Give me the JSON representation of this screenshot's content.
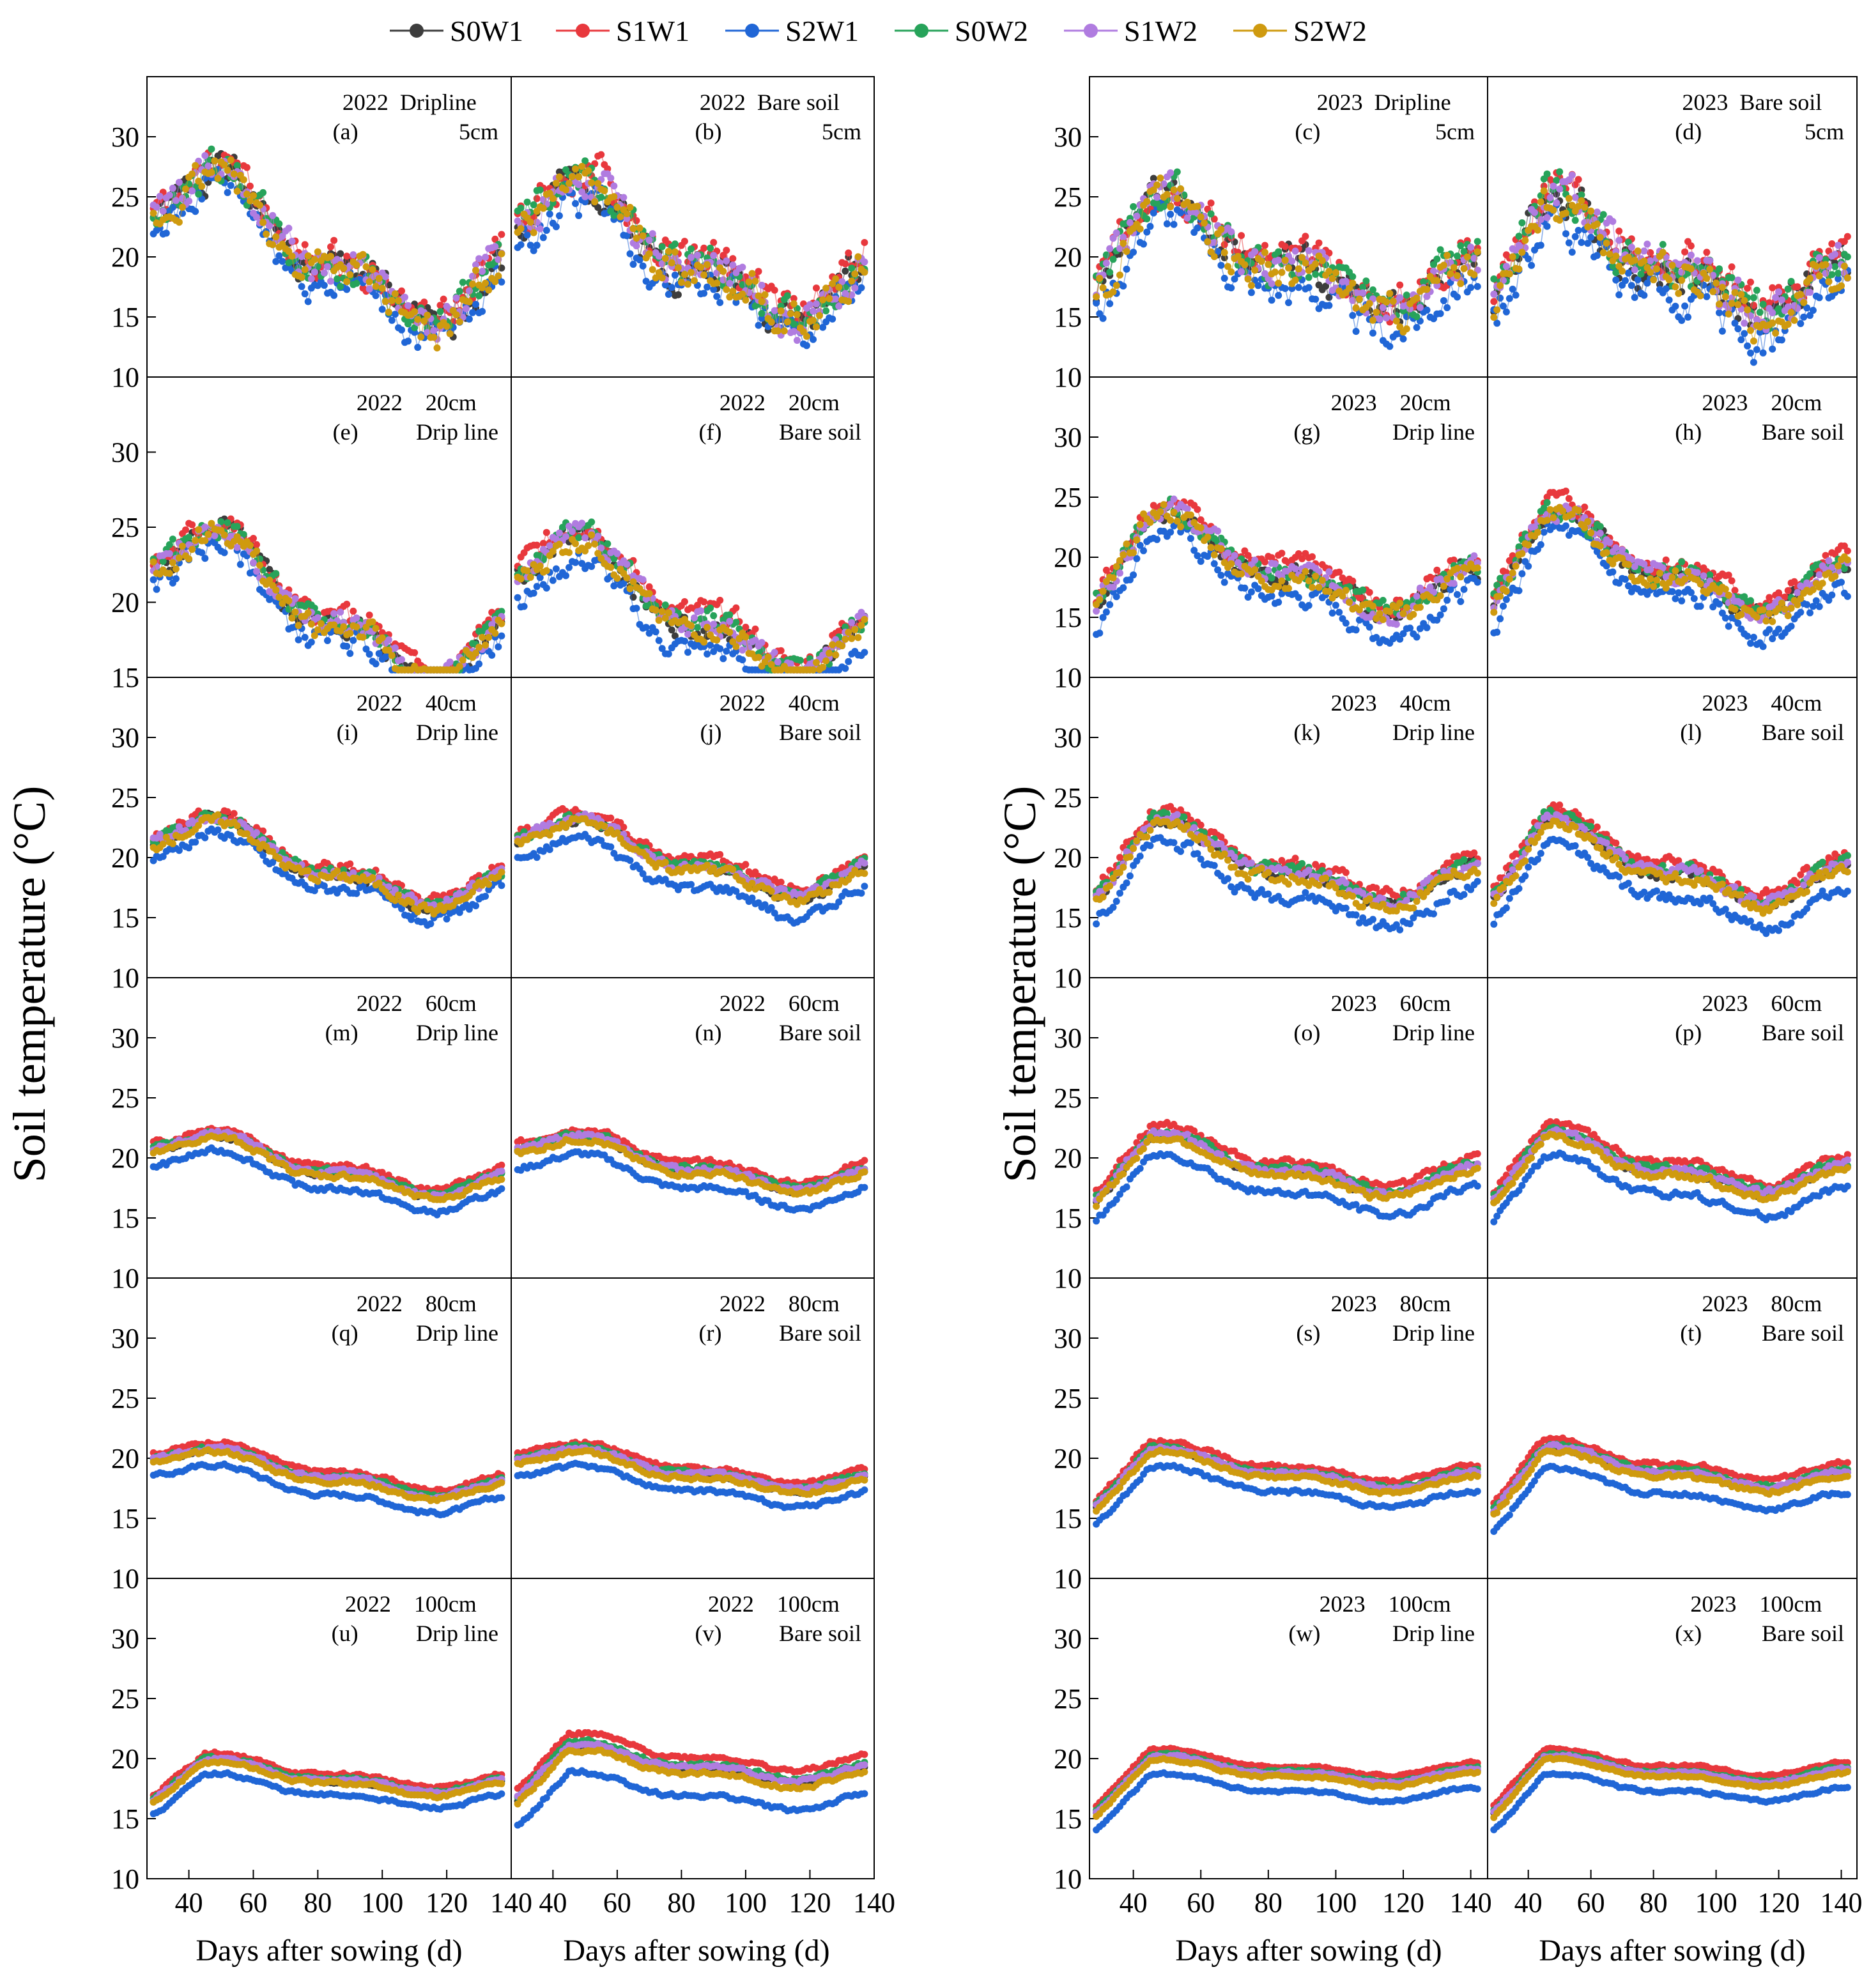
{
  "figure": {
    "ylabel": "Soil temperature (°C)",
    "xlabel": "Days after sowing (d)"
  },
  "legend": [
    {
      "name": "S0W1",
      "color": "#3d3d3d"
    },
    {
      "name": "S1W1",
      "color": "#e8383d"
    },
    {
      "name": "S2W1",
      "color": "#2066d6"
    },
    {
      "name": "S0W2",
      "color": "#27a35a"
    },
    {
      "name": "S1W2",
      "color": "#b07ce0"
    },
    {
      "name": "S2W2",
      "color": "#cf9a0f"
    }
  ],
  "chart_data": [
    {
      "type": "scatter",
      "panel": "a",
      "year": "2022",
      "location": "Dripline",
      "depth": "5cm",
      "header_top": "2022  Dripline",
      "header_left": "(a)",
      "header_right": "5cm",
      "xlim": [
        27,
        140
      ],
      "ylim": [
        10,
        35
      ],
      "yticks": [
        10,
        15,
        20,
        25,
        30
      ],
      "base": 23,
      "amp": 3.5,
      "trend": -6,
      "spread": 1.8,
      "noise": 2.5,
      "ramp": 0,
      "seed": 1
    },
    {
      "type": "scatter",
      "panel": "b",
      "year": "2022",
      "location": "Bare soil",
      "depth": "5cm",
      "header_top": "2022  Bare soil",
      "header_left": "(b)",
      "header_right": "5cm",
      "xlim": [
        27,
        140
      ],
      "ylim": [
        10,
        35
      ],
      "yticks": [
        10,
        15,
        20,
        25,
        30
      ],
      "base": 22.5,
      "amp": 3,
      "trend": -5.5,
      "spread": 2.2,
      "noise": 2.7,
      "ramp": 0,
      "seed": 2
    },
    {
      "type": "scatter",
      "panel": "c",
      "year": "2023",
      "location": "Dripline",
      "depth": "5cm",
      "header_top": "2023  Dripline",
      "header_left": "(c)",
      "header_right": "5cm",
      "xlim": [
        27,
        145
      ],
      "ylim": [
        10,
        35
      ],
      "yticks": [
        10,
        15,
        20,
        25,
        30
      ],
      "base": 22,
      "amp": 2.5,
      "trend": -5,
      "spread": 2.6,
      "noise": 2.6,
      "ramp": 6,
      "seed": 3
    },
    {
      "type": "scatter",
      "panel": "d",
      "year": "2023",
      "location": "Bare soil",
      "depth": "5cm",
      "header_top": "2023  Bare soil",
      "header_left": "(d)",
      "header_right": "5cm",
      "xlim": [
        27,
        145
      ],
      "ylim": [
        10,
        35
      ],
      "yticks": [
        10,
        15,
        20,
        25,
        30
      ],
      "base": 21.5,
      "amp": 2.5,
      "trend": -5,
      "spread": 3.2,
      "noise": 2.8,
      "ramp": 6,
      "seed": 4
    },
    {
      "type": "scatter",
      "panel": "e",
      "year": "2022",
      "location": "Drip line",
      "depth": "20cm",
      "header_top": "2022    20cm",
      "header_left": "(e)",
      "header_right": "Drip line",
      "xlim": [
        27,
        140
      ],
      "ylim": [
        15,
        35
      ],
      "yticks": [
        15,
        20,
        25,
        30
      ],
      "base": 22,
      "amp": 2.5,
      "trend": -5.5,
      "spread": 1.6,
      "noise": 1.4,
      "ramp": 0,
      "seed": 5
    },
    {
      "type": "scatter",
      "panel": "f",
      "year": "2022",
      "location": "Bare soil",
      "depth": "20cm",
      "header_top": "2022    20cm",
      "header_left": "(f)",
      "header_right": "Bare soil",
      "xlim": [
        27,
        140
      ],
      "ylim": [
        15,
        35
      ],
      "yticks": [
        15,
        20,
        25,
        30
      ],
      "base": 21.5,
      "amp": 2.3,
      "trend": -5,
      "spread": 2.6,
      "noise": 1.3,
      "ramp": 0,
      "seed": 6
    },
    {
      "type": "scatter",
      "panel": "g",
      "year": "2023",
      "location": "Drip line",
      "depth": "20cm",
      "header_top": "2023    20cm",
      "header_left": "(g)",
      "header_right": "Drip line",
      "xlim": [
        27,
        145
      ],
      "ylim": [
        10,
        35
      ],
      "yticks": [
        10,
        15,
        20,
        25,
        30
      ],
      "base": 21,
      "amp": 2.2,
      "trend": -4.5,
      "spread": 2.8,
      "noise": 1.5,
      "ramp": 6,
      "seed": 7
    },
    {
      "type": "scatter",
      "panel": "h",
      "year": "2023",
      "location": "Bare soil",
      "depth": "20cm",
      "header_top": "2023    20cm",
      "header_left": "(h)",
      "header_right": "Bare soil",
      "xlim": [
        27,
        145
      ],
      "ylim": [
        10,
        35
      ],
      "yticks": [
        10,
        15,
        20,
        25,
        30
      ],
      "base": 21,
      "amp": 2.2,
      "trend": -4.5,
      "spread": 2.8,
      "noise": 1.4,
      "ramp": 6,
      "seed": 8
    },
    {
      "type": "scatter",
      "panel": "i",
      "year": "2022",
      "location": "Drip line",
      "depth": "40cm",
      "header_top": "2022    40cm",
      "header_left": "(i)",
      "header_right": "Drip line",
      "xlim": [
        27,
        140
      ],
      "ylim": [
        10,
        35
      ],
      "yticks": [
        10,
        15,
        20,
        25,
        30
      ],
      "base": 21,
      "amp": 1.8,
      "trend": -4,
      "spread": 1.8,
      "noise": 0.8,
      "ramp": 0,
      "seed": 9
    },
    {
      "type": "scatter",
      "panel": "j",
      "year": "2022",
      "location": "Bare soil",
      "depth": "40cm",
      "header_top": "2022    40cm",
      "header_left": "(j)",
      "header_right": "Bare soil",
      "xlim": [
        27,
        140
      ],
      "ylim": [
        10,
        35
      ],
      "yticks": [
        10,
        15,
        20,
        25,
        30
      ],
      "base": 21,
      "amp": 1.6,
      "trend": -3.5,
      "spread": 2.6,
      "noise": 0.7,
      "ramp": 0,
      "seed": 10
    },
    {
      "type": "scatter",
      "panel": "k",
      "year": "2023",
      "location": "Drip line",
      "depth": "40cm",
      "header_top": "2023    40cm",
      "header_left": "(k)",
      "header_right": "Drip line",
      "xlim": [
        27,
        145
      ],
      "ylim": [
        10,
        35
      ],
      "yticks": [
        10,
        15,
        20,
        25,
        30
      ],
      "base": 20.5,
      "amp": 1.8,
      "trend": -3.5,
      "spread": 2.8,
      "noise": 0.9,
      "ramp": 5,
      "seed": 11
    },
    {
      "type": "scatter",
      "panel": "l",
      "year": "2023",
      "location": "Bare soil",
      "depth": "40cm",
      "header_top": "2023    40cm",
      "header_left": "(l)",
      "header_right": "Bare soil",
      "xlim": [
        27,
        145
      ],
      "ylim": [
        10,
        35
      ],
      "yticks": [
        10,
        15,
        20,
        25,
        30
      ],
      "base": 20.5,
      "amp": 1.8,
      "trend": -3.5,
      "spread": 3.0,
      "noise": 0.8,
      "ramp": 5,
      "seed": 12
    },
    {
      "type": "scatter",
      "panel": "m",
      "year": "2022",
      "location": "Drip line",
      "depth": "60cm",
      "header_top": "2022    60cm",
      "header_left": "(m)",
      "header_right": "Drip line",
      "xlim": [
        27,
        140
      ],
      "ylim": [
        10,
        35
      ],
      "yticks": [
        10,
        15,
        20,
        25,
        30
      ],
      "base": 20.3,
      "amp": 1.2,
      "trend": -3,
      "spread": 2.0,
      "noise": 0.4,
      "ramp": 0,
      "seed": 13
    },
    {
      "type": "scatter",
      "panel": "n",
      "year": "2022",
      "location": "Bare soil",
      "depth": "60cm",
      "header_top": "2022    60cm",
      "header_left": "(n)",
      "header_right": "Bare soil",
      "xlim": [
        27,
        140
      ],
      "ylim": [
        10,
        35
      ],
      "yticks": [
        10,
        15,
        20,
        25,
        30
      ],
      "base": 20.2,
      "amp": 1.1,
      "trend": -2.5,
      "spread": 2.2,
      "noise": 0.4,
      "ramp": 0,
      "seed": 14
    },
    {
      "type": "scatter",
      "panel": "o",
      "year": "2023",
      "location": "Drip line",
      "depth": "60cm",
      "header_top": "2023    60cm",
      "header_left": "(o)",
      "header_right": "Drip line",
      "xlim": [
        27,
        145
      ],
      "ylim": [
        10,
        35
      ],
      "yticks": [
        10,
        15,
        20,
        25,
        30
      ],
      "base": 20,
      "amp": 1.3,
      "trend": -2.5,
      "spread": 2.6,
      "noise": 0.5,
      "ramp": 4.5,
      "seed": 15
    },
    {
      "type": "scatter",
      "panel": "p",
      "year": "2023",
      "location": "Bare soil",
      "depth": "60cm",
      "header_top": "2023    60cm",
      "header_left": "(p)",
      "header_right": "Bare soil",
      "xlim": [
        27,
        145
      ],
      "ylim": [
        10,
        35
      ],
      "yticks": [
        10,
        15,
        20,
        25,
        30
      ],
      "base": 20,
      "amp": 1.3,
      "trend": -2.5,
      "spread": 2.8,
      "noise": 0.5,
      "ramp": 4.5,
      "seed": 16
    },
    {
      "type": "scatter",
      "panel": "q",
      "year": "2022",
      "location": "Drip line",
      "depth": "80cm",
      "header_top": "2022    80cm",
      "header_left": "(q)",
      "header_right": "Drip line",
      "xlim": [
        27,
        140
      ],
      "ylim": [
        10,
        35
      ],
      "yticks": [
        10,
        15,
        20,
        25,
        30
      ],
      "base": 19.5,
      "amp": 0.9,
      "trend": -2.5,
      "spread": 2.0,
      "noise": 0.3,
      "ramp": 0,
      "seed": 17
    },
    {
      "type": "scatter",
      "panel": "r",
      "year": "2022",
      "location": "Bare soil",
      "depth": "80cm",
      "header_top": "2022    80cm",
      "header_left": "(r)",
      "header_right": "Bare soil",
      "xlim": [
        27,
        140
      ],
      "ylim": [
        10,
        35
      ],
      "yticks": [
        10,
        15,
        20,
        25,
        30
      ],
      "base": 19.5,
      "amp": 0.8,
      "trend": -2,
      "spread": 2.0,
      "noise": 0.3,
      "ramp": 0,
      "seed": 18
    },
    {
      "type": "scatter",
      "panel": "s",
      "year": "2023",
      "location": "Drip line",
      "depth": "80cm",
      "header_top": "2023    80cm",
      "header_left": "(s)",
      "header_right": "Drip line",
      "xlim": [
        27,
        145
      ],
      "ylim": [
        10,
        35
      ],
      "yticks": [
        10,
        15,
        20,
        25,
        30
      ],
      "base": 19.5,
      "amp": 0.8,
      "trend": -2,
      "spread": 2.2,
      "noise": 0.3,
      "ramp": 4.5,
      "seed": 19
    },
    {
      "type": "scatter",
      "panel": "t",
      "year": "2023",
      "location": "Bare soil",
      "depth": "80cm",
      "header_top": "2023    80cm",
      "header_left": "(t)",
      "header_right": "Bare soil",
      "xlim": [
        27,
        145
      ],
      "ylim": [
        10,
        35
      ],
      "yticks": [
        10,
        15,
        20,
        25,
        30
      ],
      "base": 19.5,
      "amp": 0.8,
      "trend": -2,
      "spread": 2.6,
      "noise": 0.3,
      "ramp": 5,
      "seed": 20
    },
    {
      "type": "scatter",
      "panel": "u",
      "year": "2022",
      "location": "Drip line",
      "depth": "100cm",
      "header_top": "2022    100cm",
      "header_left": "(u)",
      "header_right": "Drip line",
      "xlim": [
        27,
        140
      ],
      "ylim": [
        10,
        35
      ],
      "yticks": [
        10,
        15,
        20,
        25,
        30
      ],
      "base": 18.8,
      "amp": 0.7,
      "trend": -1.5,
      "spread": 1.8,
      "noise": 0.25,
      "ramp": 3,
      "seed": 21
    },
    {
      "type": "scatter",
      "panel": "v",
      "year": "2022",
      "location": "Bare soil",
      "depth": "100cm",
      "header_top": "2022    100cm",
      "header_left": "(v)",
      "header_right": "Bare soil",
      "xlim": [
        27,
        140
      ],
      "ylim": [
        10,
        35
      ],
      "yticks": [
        10,
        15,
        20,
        25,
        30
      ],
      "base": 19.5,
      "amp": 0.8,
      "trend": -1.5,
      "spread": 3.4,
      "noise": 0.3,
      "ramp": 4,
      "seed": 22
    },
    {
      "type": "scatter",
      "panel": "w",
      "year": "2023",
      "location": "Drip line",
      "depth": "100cm",
      "header_top": "2023    100cm",
      "header_left": "(w)",
      "header_right": "Drip line",
      "xlim": [
        27,
        145
      ],
      "ylim": [
        10,
        35
      ],
      "yticks": [
        10,
        15,
        20,
        25,
        30
      ],
      "base": 19,
      "amp": 0.6,
      "trend": -1,
      "spread": 2.2,
      "noise": 0.2,
      "ramp": 4.5,
      "seed": 23
    },
    {
      "type": "scatter",
      "panel": "x",
      "year": "2023",
      "location": "Bare soil",
      "depth": "100cm",
      "header_top": "2023    100cm",
      "header_left": "(x)",
      "header_right": "Bare soil",
      "xlim": [
        27,
        145
      ],
      "ylim": [
        10,
        35
      ],
      "yticks": [
        10,
        15,
        20,
        25,
        30
      ],
      "base": 19,
      "amp": 0.6,
      "trend": -1,
      "spread": 2.2,
      "noise": 0.2,
      "ramp": 4.5,
      "seed": 24
    }
  ],
  "x_axis": {
    "left_ticks": [
      "40",
      "60",
      "80",
      "100",
      "120",
      "140"
    ],
    "middle_ticks": [
      "40",
      "60",
      "80",
      "100",
      "120",
      "140"
    ],
    "right_ticks": [
      "40",
      "60",
      "80",
      "100",
      "120",
      "140"
    ],
    "right2_ticks": [
      "40",
      "60",
      "80",
      "100",
      "120",
      "140"
    ]
  }
}
